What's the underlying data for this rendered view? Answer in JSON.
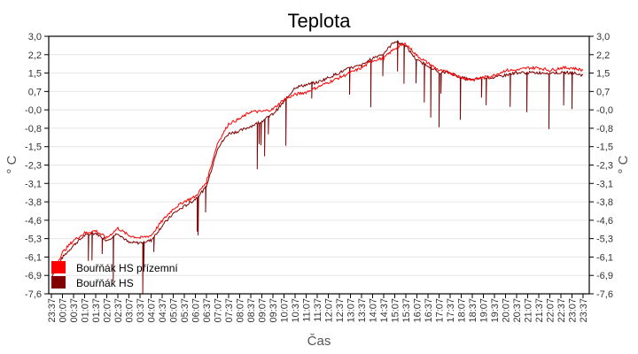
{
  "chart_data": {
    "type": "line",
    "title": "Teplota",
    "xlabel": "Čas",
    "ylabel": "° C",
    "ylabel_right": "° C",
    "ylim": [
      -7.6,
      3.0
    ],
    "grid": true,
    "legend_position": "lower-left (inside plot)",
    "y_ticks": [
      "3,0",
      "2,2",
      "1,5",
      "0,7",
      "-0,0",
      "-0,8",
      "-1,5",
      "-2,3",
      "-3,1",
      "-3,8",
      "-4,6",
      "-5,3",
      "-6,1",
      "-6,9",
      "-7,6"
    ],
    "x_ticks": [
      "23:37",
      "00:07",
      "00:37",
      "01:07",
      "01:37",
      "02:07",
      "02:37",
      "03:07",
      "03:37",
      "04:07",
      "04:37",
      "05:07",
      "05:37",
      "06:07",
      "06:37",
      "07:07",
      "07:37",
      "08:07",
      "08:37",
      "09:07",
      "09:37",
      "10:07",
      "10:37",
      "11:07",
      "11:37",
      "12:07",
      "12:37",
      "13:07",
      "13:37",
      "14:07",
      "14:37",
      "15:07",
      "15:37",
      "16:07",
      "16:37",
      "17:07",
      "17:37",
      "18:07",
      "18:37",
      "19:07",
      "19:37",
      "20:07",
      "20:37",
      "21:07",
      "21:37",
      "22:07",
      "22:37",
      "23:07",
      "23:37"
    ],
    "x": [
      "23:37",
      "00:07",
      "00:37",
      "01:07",
      "01:37",
      "02:07",
      "02:37",
      "03:07",
      "03:37",
      "04:07",
      "04:37",
      "05:07",
      "05:37",
      "06:07",
      "06:37",
      "07:07",
      "07:37",
      "08:07",
      "08:37",
      "09:07",
      "09:37",
      "10:07",
      "10:37",
      "11:07",
      "11:37",
      "12:07",
      "12:37",
      "13:07",
      "13:37",
      "14:07",
      "14:37",
      "15:07",
      "15:37",
      "16:07",
      "16:37",
      "17:07",
      "17:37",
      "18:07",
      "18:37",
      "19:07",
      "19:37",
      "20:07",
      "20:37",
      "21:07",
      "21:37",
      "22:07",
      "22:37",
      "23:07",
      "23:37"
    ],
    "series": [
      {
        "name": "Bouřňák HS přízemní",
        "color": "#ff0000",
        "values": [
          -6.8,
          -5.9,
          -5.4,
          -5.1,
          -5.0,
          -5.3,
          -4.9,
          -5.2,
          -5.3,
          -5.2,
          -4.6,
          -4.1,
          -3.8,
          -3.6,
          -3.0,
          -1.4,
          -0.6,
          -0.4,
          -0.1,
          -0.1,
          0.0,
          0.4,
          0.6,
          0.7,
          0.9,
          1.1,
          1.3,
          1.5,
          1.7,
          2.0,
          2.1,
          2.5,
          2.7,
          2.2,
          1.9,
          1.6,
          1.5,
          1.3,
          1.2,
          1.3,
          1.4,
          1.6,
          1.6,
          1.7,
          1.7,
          1.6,
          1.7,
          1.7,
          1.6
        ]
      },
      {
        "name": "Bouřňák HS",
        "color": "#800000",
        "values": [
          -6.9,
          -6.1,
          -5.6,
          -5.2,
          -5.1,
          -5.4,
          -5.1,
          -5.5,
          -5.5,
          -5.4,
          -4.8,
          -4.3,
          -4.0,
          -3.7,
          -3.2,
          -1.6,
          -1.0,
          -0.9,
          -0.7,
          -0.5,
          -0.2,
          0.3,
          0.9,
          1.0,
          1.1,
          1.3,
          1.5,
          1.7,
          1.8,
          2.1,
          2.3,
          2.8,
          2.6,
          2.0,
          1.8,
          1.5,
          1.5,
          1.3,
          1.2,
          1.3,
          1.3,
          1.4,
          1.5,
          1.5,
          1.5,
          1.5,
          1.5,
          1.5,
          1.4
        ]
      }
    ]
  },
  "legend": [
    {
      "label": "Bouřňák HS přízemní",
      "color": "#ff0000"
    },
    {
      "label": "Bouřňák HS",
      "color": "#800000"
    }
  ]
}
